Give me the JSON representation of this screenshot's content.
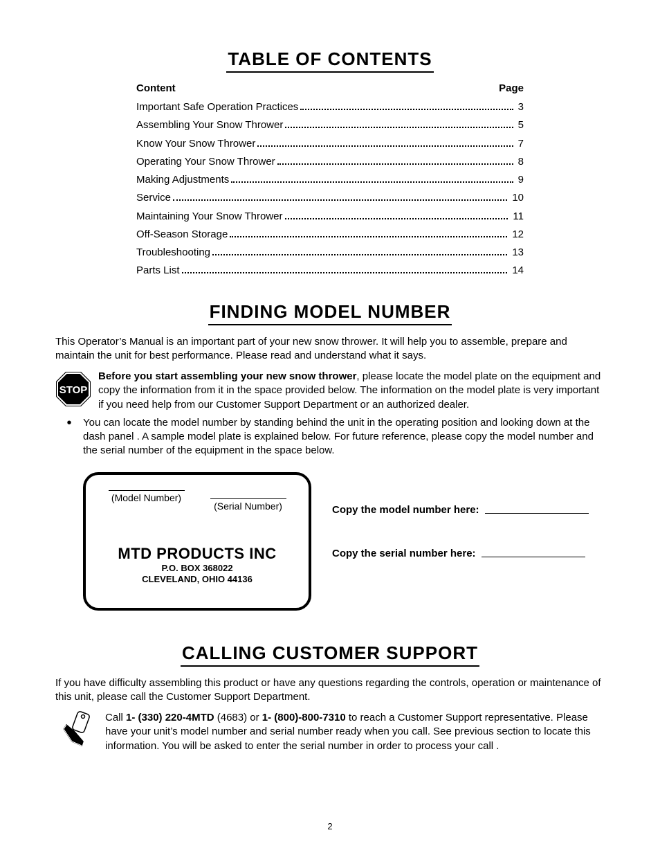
{
  "page_number": "2",
  "toc": {
    "heading": "TABLE OF CONTENTS",
    "col_content": "Content",
    "col_page": "Page",
    "rows": [
      {
        "title": "Important Safe Operation Practices",
        "page": "3"
      },
      {
        "title": "Assembling Your Snow Thrower",
        "page": "5"
      },
      {
        "title": "Know Your Snow Thrower",
        "page": "7"
      },
      {
        "title": "Operating Your Snow Thrower",
        "page": "8"
      },
      {
        "title": "Making Adjustments",
        "page": "9"
      },
      {
        "title": "Service",
        "page": "10"
      },
      {
        "title": "Maintaining Your Snow Thrower",
        "page": "11"
      },
      {
        "title": "Off-Season Storage",
        "page": "12"
      },
      {
        "title": "Troubleshooting",
        "page": "13"
      },
      {
        "title": "Parts List",
        "page": "14"
      }
    ]
  },
  "model": {
    "heading": "FINDING MODEL NUMBER",
    "intro": "This Operator’s Manual is an important part of your new snow thrower. It will help you to assemble, prepare and maintain the unit for best performance. Please read and understand what it says.",
    "stop_label": "STOP",
    "stop_bold": "Before you start assembling your new snow thrower",
    "stop_rest": ", please locate the model plate on the equipment and copy the information from it in the space provided below. The information on the model plate is very important if you need help from our Customer Support Department or an authorized dealer.",
    "bullet": "You can locate the model number by standing behind the unit in the operating position and looking down at the dash panel . A sample model plate is explained below. For future reference, please copy the model number and the serial number of the equipment in the space below.",
    "plate": {
      "model_label": "(Model Number)",
      "serial_label": "(Serial Number)",
      "company": "MTD PRODUCTS INC",
      "addr1": "P.O. BOX 368022",
      "addr2": "CLEVELAND, OHIO  44136"
    },
    "copy_model": "Copy the model number here:",
    "copy_serial": "Copy the serial number here:"
  },
  "support": {
    "heading": "CALLING CUSTOMER SUPPORT",
    "intro": "If you have difficulty assembling this product or have any questions regarding the controls, operation or maintenance of this unit, please call the Customer Support Department.",
    "p1a": "Call ",
    "phone1": "1- (330) 220-4MTD",
    "p1b": " (4683) or ",
    "phone2": "1- (800)-800-7310",
    "p1c": " to reach a Customer Support representative. Please have your unit’s model number and serial number ready when you call. See previous section to locate this information. You will be asked to enter the serial number in order to process your call ."
  },
  "colors": {
    "text": "#000000",
    "background": "#ffffff"
  }
}
